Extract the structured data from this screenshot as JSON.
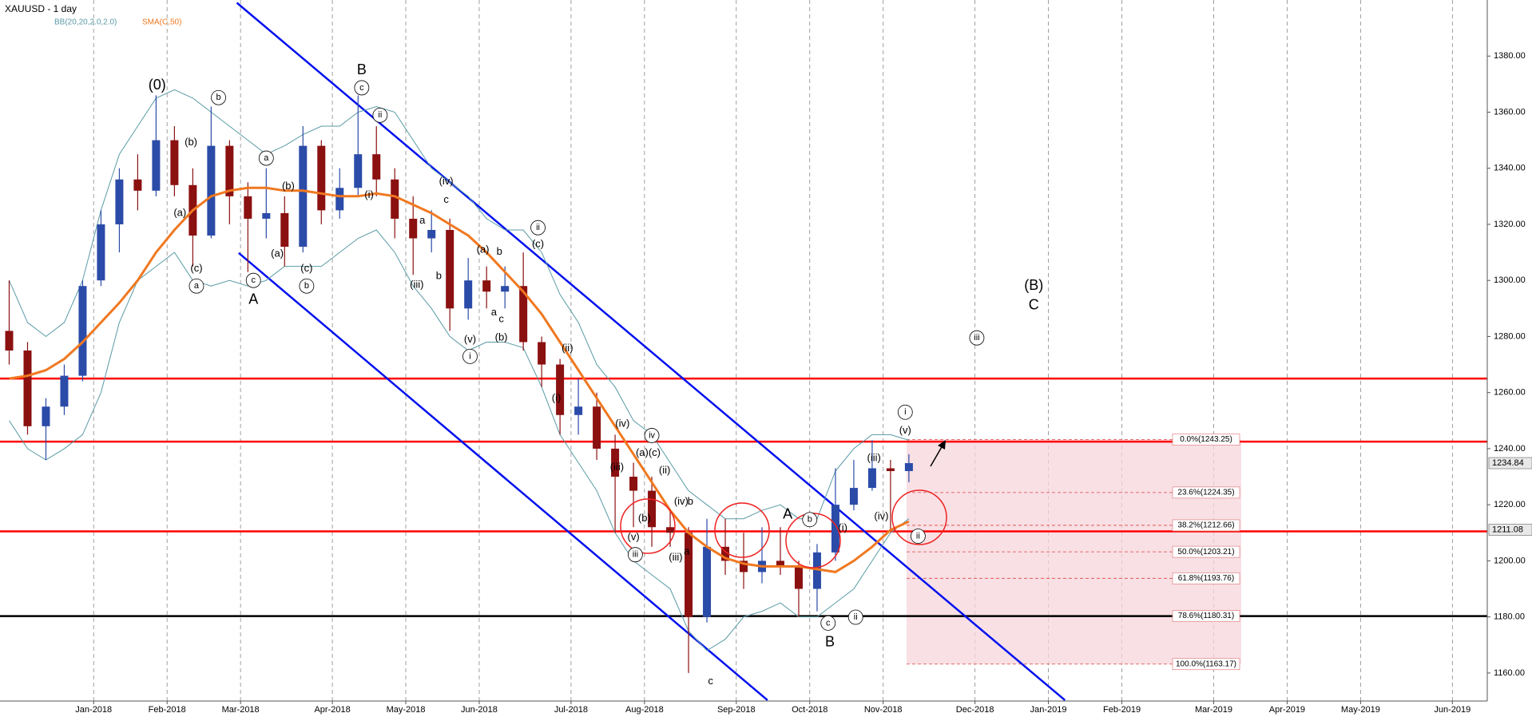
{
  "chart_data": {
    "type": "candlestick",
    "title": "XAUUSD - 1 day",
    "indicators": {
      "bb": {
        "label": "BB(20,20,2.0,2.0)",
        "color": "#5a9aa6",
        "upper": [
          1300,
          1285,
          1280,
          1285,
          1300,
          1325,
          1345,
          1355,
          1365,
          1368,
          1365,
          1360,
          1355,
          1350,
          1345,
          1348,
          1352,
          1355,
          1355,
          1360,
          1362,
          1360,
          1350,
          1340,
          1335,
          1330,
          1322,
          1318,
          1318,
          1310,
          1295,
          1285,
          1270,
          1262,
          1250,
          1245,
          1235,
          1225,
          1220,
          1215,
          1215,
          1218,
          1220,
          1215,
          1215,
          1232,
          1240,
          1245,
          1245,
          1243,
          null,
          null,
          null,
          null,
          null,
          null,
          null,
          null,
          null,
          null,
          null,
          null,
          null,
          null,
          null,
          null,
          null,
          null,
          null,
          null,
          null,
          null,
          null,
          null,
          null,
          null,
          null,
          null,
          null,
          null,
          null
        ],
        "lower": [
          1250,
          1240,
          1236,
          1240,
          1245,
          1260,
          1285,
          1300,
          1305,
          1310,
          1300,
          1298,
          1300,
          1298,
          1300,
          1305,
          1305,
          1305,
          1310,
          1315,
          1318,
          1310,
          1298,
          1290,
          1280,
          1275,
          1278,
          1278,
          1276,
          1262,
          1245,
          1235,
          1225,
          1210,
          1200,
          1195,
          1190,
          1175,
          1168,
          1172,
          1180,
          1182,
          1185,
          1180,
          1180,
          1185,
          1190,
          1200,
          1210,
          1215,
          null,
          null,
          null,
          null,
          null,
          null,
          null,
          null,
          null,
          null,
          null,
          null,
          null,
          null,
          null,
          null,
          null,
          null,
          null,
          null,
          null,
          null,
          null,
          null,
          null,
          null,
          null,
          null,
          null,
          null,
          null
        ]
      },
      "sma": {
        "label": "SMA(C,50)",
        "color": "#f07820",
        "values": [
          1265,
          1266,
          1268,
          1272,
          1278,
          1285,
          1292,
          1300,
          1310,
          1318,
          1325,
          1330,
          1332,
          1333,
          1333,
          1332,
          1332,
          1331,
          1330,
          1330,
          1331,
          1330,
          1327,
          1324,
          1320,
          1316,
          1310,
          1303,
          1296,
          1288,
          1278,
          1268,
          1258,
          1248,
          1238,
          1228,
          1218,
          1210,
          1205,
          1201,
          1199,
          1198,
          1198,
          1198,
          1197,
          1196,
          1200,
          1205,
          1211,
          1214,
          null,
          null,
          null,
          null,
          null,
          null,
          null,
          null,
          null,
          null,
          null,
          null,
          null,
          null,
          null,
          null,
          null,
          null,
          null,
          null,
          null,
          null,
          null,
          null,
          null,
          null,
          null,
          null,
          null,
          null,
          null
        ]
      }
    },
    "categories": [
      null,
      null,
      null,
      null,
      null,
      "Jan-2018",
      null,
      null,
      null,
      "Feb-2018",
      null,
      null,
      null,
      "Mar-2018",
      null,
      null,
      null,
      null,
      "Apr-2018",
      null,
      null,
      null,
      "May-2018",
      null,
      null,
      null,
      "Jun-2018",
      null,
      null,
      null,
      null,
      "Jul-2018",
      null,
      null,
      null,
      "Aug-2018",
      null,
      null,
      null,
      null,
      "Sep-2018",
      null,
      null,
      null,
      "Oct-2018",
      null,
      null,
      null,
      "Nov-2018",
      null,
      null,
      null,
      null,
      "Dec-2018",
      null,
      null,
      null,
      "Jan-2019",
      null,
      null,
      null,
      "Feb-2019",
      null,
      null,
      null,
      null,
      "Mar-2019",
      null,
      null,
      null,
      "Apr-2019",
      null,
      null,
      null,
      "May-2019",
      null,
      null,
      null,
      null,
      "Jun-2019",
      null
    ],
    "open": [
      1282,
      1275,
      1248,
      1255,
      1266,
      1300,
      1320,
      1336,
      1332,
      1350,
      1334,
      1316,
      1348,
      1330,
      1322,
      1324,
      1312,
      1348,
      1325,
      1333,
      1345,
      1336,
      1322,
      1315,
      1318,
      1290,
      1300,
      1296,
      1298,
      1278,
      1270,
      1252,
      1255,
      1240,
      1230,
      1225,
      1212,
      1210,
      1180,
      1205,
      1200,
      1196,
      1200,
      1198,
      1190,
      1203,
      1220,
      1226,
      1233,
      1232,
      null,
      null,
      null,
      null,
      null,
      null,
      null,
      null,
      null,
      null,
      null,
      null,
      null,
      null,
      null,
      null,
      null,
      null,
      null,
      null,
      null,
      null,
      null,
      null,
      null,
      null,
      null,
      null,
      null,
      null,
      null
    ],
    "high": [
      1300,
      1278,
      1258,
      1270,
      1300,
      1325,
      1340,
      1345,
      1366,
      1355,
      1340,
      1362,
      1350,
      1335,
      1340,
      1330,
      1355,
      1350,
      1340,
      1366,
      1355,
      1340,
      1330,
      1325,
      1322,
      1308,
      1305,
      1305,
      1310,
      1280,
      1272,
      1265,
      1260,
      1245,
      1235,
      1230,
      1218,
      1212,
      1215,
      1215,
      1210,
      1212,
      1212,
      1200,
      1206,
      1233,
      1236,
      1243,
      1236,
      1238,
      null,
      null,
      null,
      null,
      null,
      null,
      null,
      null,
      null,
      null,
      null,
      null,
      null,
      null,
      null,
      null,
      null,
      null,
      null,
      null,
      null,
      null,
      null,
      null,
      null,
      null,
      null,
      null,
      null,
      null,
      null
    ],
    "low": [
      1270,
      1245,
      1236,
      1252,
      1264,
      1298,
      1310,
      1325,
      1330,
      1330,
      1305,
      1315,
      1320,
      1303,
      1315,
      1305,
      1310,
      1320,
      1322,
      1330,
      1330,
      1315,
      1302,
      1310,
      1282,
      1286,
      1290,
      1290,
      1275,
      1262,
      1245,
      1245,
      1236,
      1210,
      1212,
      1205,
      1205,
      1160,
      1178,
      1195,
      1190,
      1192,
      1195,
      1180,
      1182,
      1200,
      1218,
      1225,
      1211,
      1228,
      null,
      null,
      null,
      null,
      null,
      null,
      null,
      null,
      null,
      null,
      null,
      null,
      null,
      null,
      null,
      null,
      null,
      null,
      null,
      null,
      null,
      null,
      null,
      null,
      null,
      null,
      null,
      null,
      null,
      null,
      null
    ],
    "close": [
      1275,
      1248,
      1255,
      1266,
      1298,
      1320,
      1336,
      1332,
      1350,
      1334,
      1316,
      1348,
      1330,
      1322,
      1324,
      1312,
      1348,
      1325,
      1333,
      1345,
      1336,
      1322,
      1315,
      1318,
      1290,
      1300,
      1296,
      1298,
      1278,
      1270,
      1252,
      1255,
      1240,
      1230,
      1225,
      1212,
      1210,
      1180,
      1205,
      1200,
      1196,
      1200,
      1198,
      1190,
      1203,
      1220,
      1226,
      1233,
      1232,
      1234.84,
      null,
      null,
      null,
      null,
      null,
      null,
      null,
      null,
      null,
      null,
      null,
      null,
      null,
      null,
      null,
      null,
      null,
      null,
      null,
      null,
      null,
      null,
      null,
      null,
      null,
      null,
      null,
      null,
      null,
      null,
      null
    ],
    "up_color": "#2b4ba8",
    "down_color": "#8b1010",
    "ylim": [
      1150,
      1400
    ],
    "yticks": [
      {
        "value": 1160,
        "label": "1160.00"
      },
      {
        "value": 1180,
        "label": "1180.00"
      },
      {
        "value": 1200,
        "label": "1200.00"
      },
      {
        "value": 1220,
        "label": "1220.00"
      },
      {
        "value": 1240,
        "label": "1240.00"
      },
      {
        "value": 1260,
        "label": "1260.00"
      },
      {
        "value": 1280,
        "label": "1280.00"
      },
      {
        "value": 1300,
        "label": "1300.00"
      },
      {
        "value": 1320,
        "label": "1320.00"
      },
      {
        "value": 1340,
        "label": "1340.00"
      },
      {
        "value": 1360,
        "label": "1360.00"
      },
      {
        "value": 1380,
        "label": "1380.00"
      }
    ],
    "price_labels": [
      1234.84,
      1211.08
    ],
    "levels": [
      {
        "value": 1265,
        "color": "#ff0000"
      },
      {
        "value": 1242.5,
        "color": "#ff0000"
      },
      {
        "value": 1210.5,
        "color": "#ff0000"
      },
      {
        "value": 1180.3,
        "color": "#000000"
      }
    ],
    "channel": [
      {
        "points": [
          [
            12.4,
            1399
          ],
          [
            57.5,
            1150.3
          ]
        ],
        "color": "#0010ee"
      },
      {
        "points": [
          [
            12.5,
            1309.8
          ],
          [
            41.3,
            1150.3
          ]
        ],
        "color": "#0010ee"
      }
    ],
    "fib": [
      {
        "value": 1243.25,
        "label": "0.0%(1243.25)"
      },
      {
        "value": 1224.35,
        "label": "23.6%(1224.35)"
      },
      {
        "value": 1212.66,
        "label": "38.2%(1212.66)"
      },
      {
        "value": 1203.21,
        "label": "50.0%(1203.21)"
      },
      {
        "value": 1193.76,
        "label": "61.8%(1193.76)"
      },
      {
        "value": 1180.31,
        "label": "78.6%(1180.31)"
      },
      {
        "value": 1163.17,
        "label": "100.0%(1163.17)"
      }
    ],
    "annotations": [
      {
        "text": "(0)",
        "x": 8.06,
        "y": 1369.4,
        "circled": false,
        "large": true
      },
      {
        "text": "B",
        "x": 19.2,
        "y": 1374.9,
        "circled": false,
        "large": true
      },
      {
        "text": "A",
        "x": 13.3,
        "y": 1293,
        "circled": false,
        "large": true
      },
      {
        "text": "A",
        "x": 42.4,
        "y": 1216.4,
        "circled": false,
        "large": true
      },
      {
        "text": "B",
        "x": 44.7,
        "y": 1170.8,
        "circled": false,
        "large": true
      },
      {
        "text": "(B)",
        "x": 55.8,
        "y": 1298,
        "circled": false,
        "large": true
      },
      {
        "text": "C",
        "x": 55.8,
        "y": 1291,
        "circled": false,
        "large": true
      },
      {
        "text": "b",
        "x": 11.4,
        "y": 1365.2,
        "circled": true,
        "large": false
      },
      {
        "text": "a",
        "x": 14.0,
        "y": 1343.6,
        "circled": true,
        "large": false
      },
      {
        "text": "c",
        "x": 13.3,
        "y": 1300,
        "circled": true,
        "large": false
      },
      {
        "text": "a",
        "x": 10.2,
        "y": 1298,
        "circled": true,
        "large": false
      },
      {
        "text": "c",
        "x": 19.2,
        "y": 1368.7,
        "circled": true,
        "large": false
      },
      {
        "text": "ii",
        "x": 20.2,
        "y": 1358.9,
        "circled": true,
        "large": false
      },
      {
        "text": "b",
        "x": 16.2,
        "y": 1298,
        "circled": true,
        "large": false
      },
      {
        "text": "ii",
        "x": 28.8,
        "y": 1318.8,
        "circled": true,
        "large": false
      },
      {
        "text": "i",
        "x": 25.1,
        "y": 1272.9,
        "circled": true,
        "large": false
      },
      {
        "text": "iv",
        "x": 35.0,
        "y": 1244.7,
        "circled": true,
        "large": false
      },
      {
        "text": "iii",
        "x": 34.1,
        "y": 1202.2,
        "circled": true,
        "large": false
      },
      {
        "text": "b",
        "x": 43.6,
        "y": 1214.7,
        "circled": true,
        "large": false
      },
      {
        "text": "c",
        "x": 44.6,
        "y": 1177.8,
        "circled": true,
        "large": false
      },
      {
        "text": "ii",
        "x": 46.1,
        "y": 1179.9,
        "circled": true,
        "large": false
      },
      {
        "text": "i",
        "x": 48.8,
        "y": 1253,
        "circled": true,
        "large": false
      },
      {
        "text": "ii",
        "x": 49.5,
        "y": 1208.8,
        "circled": true,
        "large": false
      },
      {
        "text": "iii",
        "x": 52.7,
        "y": 1279.5,
        "circled": true,
        "large": false
      },
      {
        "text": "(b)",
        "x": 9.9,
        "y": 1349.1,
        "circled": false,
        "large": false
      },
      {
        "text": "(a)",
        "x": 9.3,
        "y": 1324,
        "circled": false,
        "large": false
      },
      {
        "text": "(c)",
        "x": 10.2,
        "y": 1304.2,
        "circled": false,
        "large": false
      },
      {
        "text": "(b)",
        "x": 15.2,
        "y": 1333.5,
        "circled": false,
        "large": false
      },
      {
        "text": "(a)",
        "x": 14.6,
        "y": 1309.4,
        "circled": false,
        "large": false
      },
      {
        "text": "(c)",
        "x": 16.2,
        "y": 1304.2,
        "circled": false,
        "large": false
      },
      {
        "text": "(i)",
        "x": 19.6,
        "y": 1330.3,
        "circled": false,
        "large": false
      },
      {
        "text": "(iv)",
        "x": 23.8,
        "y": 1335.2,
        "circled": false,
        "large": false
      },
      {
        "text": "(iii)",
        "x": 22.2,
        "y": 1298.3,
        "circled": false,
        "large": false
      },
      {
        "text": "(a)",
        "x": 25.8,
        "y": 1310.8,
        "circled": false,
        "large": false
      },
      {
        "text": "(b)",
        "x": 26.8,
        "y": 1279.5,
        "circled": false,
        "large": false
      },
      {
        "text": "(v)",
        "x": 25.1,
        "y": 1278.8,
        "circled": false,
        "large": false
      },
      {
        "text": "(c)",
        "x": 28.8,
        "y": 1312.9,
        "circled": false,
        "large": false
      },
      {
        "text": "(ii)",
        "x": 30.4,
        "y": 1275.7,
        "circled": false,
        "large": false
      },
      {
        "text": "(i)",
        "x": 29.8,
        "y": 1257.9,
        "circled": false,
        "large": false
      },
      {
        "text": "(iv)",
        "x": 33.4,
        "y": 1248.8,
        "circled": false,
        "large": false
      },
      {
        "text": "(iii)",
        "x": 33.1,
        "y": 1233.2,
        "circled": false,
        "large": false
      },
      {
        "text": "(a)(c)",
        "x": 34.8,
        "y": 1238.4,
        "circled": false,
        "large": false
      },
      {
        "text": "(ii)",
        "x": 35.7,
        "y": 1232.1,
        "circled": false,
        "large": false
      },
      {
        "text": "(iv)",
        "x": 36.6,
        "y": 1221,
        "circled": false,
        "large": false
      },
      {
        "text": "(v)",
        "x": 34.0,
        "y": 1208.4,
        "circled": false,
        "large": false
      },
      {
        "text": "(b)",
        "x": 34.6,
        "y": 1215,
        "circled": false,
        "large": false
      },
      {
        "text": "(iii)",
        "x": 36.3,
        "y": 1201.1,
        "circled": false,
        "large": false
      },
      {
        "text": "(iii)",
        "x": 47.1,
        "y": 1236.6,
        "circled": false,
        "large": false
      },
      {
        "text": "(iv)",
        "x": 47.5,
        "y": 1215.7,
        "circled": false,
        "large": false
      },
      {
        "text": "(v)",
        "x": 48.8,
        "y": 1246.4,
        "circled": false,
        "large": false
      },
      {
        "text": "(i)",
        "x": 45.4,
        "y": 1211.6,
        "circled": false,
        "large": false
      },
      {
        "text": "c",
        "x": 23.8,
        "y": 1328.6,
        "circled": false,
        "large": false
      },
      {
        "text": "a",
        "x": 22.5,
        "y": 1321.3,
        "circled": false,
        "large": false
      },
      {
        "text": "b",
        "x": 23.4,
        "y": 1301.4,
        "circled": false,
        "large": false
      },
      {
        "text": "b",
        "x": 26.7,
        "y": 1310.1,
        "circled": false,
        "large": false
      },
      {
        "text": "a",
        "x": 26.4,
        "y": 1288.5,
        "circled": false,
        "large": false
      },
      {
        "text": "c",
        "x": 26.8,
        "y": 1286.1,
        "circled": false,
        "large": false
      },
      {
        "text": "b",
        "x": 37.1,
        "y": 1221,
        "circled": false,
        "large": false
      },
      {
        "text": "a",
        "x": 36.9,
        "y": 1203.2,
        "circled": false,
        "large": false
      },
      {
        "text": "c",
        "x": 38.2,
        "y": 1156.9,
        "circled": false,
        "large": false
      }
    ]
  }
}
